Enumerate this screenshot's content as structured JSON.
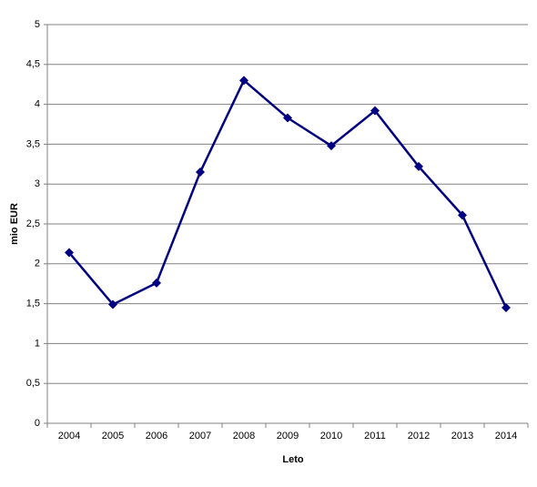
{
  "chart_data": {
    "type": "line",
    "x_label": "Leto",
    "y_label": "mio EUR",
    "categories": [
      "2004",
      "2005",
      "2006",
      "2007",
      "2008",
      "2009",
      "2010",
      "2011",
      "2012",
      "2013",
      "2014"
    ],
    "values": [
      2.14,
      1.49,
      1.76,
      3.15,
      4.3,
      3.83,
      3.48,
      3.92,
      3.22,
      2.61,
      1.45
    ],
    "color": "#000080",
    "ylim": [
      0,
      5
    ],
    "yticks": [
      0,
      {
        "value": 0.5,
        "label": "0,5"
      },
      1,
      {
        "value": 1.5,
        "label": "1,5"
      },
      2,
      {
        "value": 2.5,
        "label": "2,5"
      },
      3,
      {
        "value": 3.5,
        "label": "3,5"
      },
      4,
      {
        "value": 4.5,
        "label": "4,5"
      },
      5
    ],
    "grid": true
  }
}
